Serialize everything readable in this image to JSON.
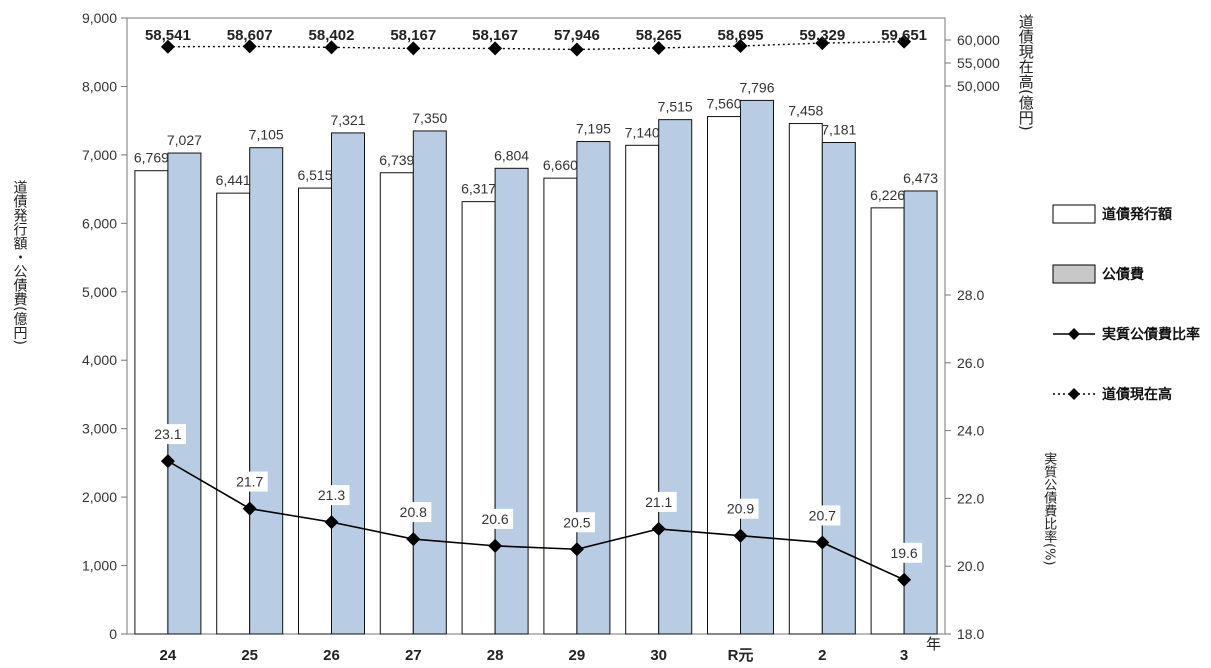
{
  "chart_data": {
    "type": "bar",
    "categories": [
      "24",
      "25",
      "26",
      "27",
      "28",
      "29",
      "30",
      "R元",
      "2",
      "3"
    ],
    "x_unit": "年",
    "series": [
      {
        "name": "道債発行額",
        "type": "bar",
        "axis": "left",
        "color": "#ffffff",
        "values": [
          6769,
          6441,
          6515,
          6739,
          6317,
          6660,
          7140,
          7560,
          7458,
          6226
        ]
      },
      {
        "name": "公債費",
        "type": "bar",
        "axis": "left",
        "color": "#b8cce4",
        "values": [
          7027,
          7105,
          7321,
          7350,
          6804,
          7195,
          7515,
          7796,
          7181,
          6473
        ]
      },
      {
        "name": "実質公債費比率",
        "type": "line",
        "axis": "right_bottom",
        "style": "solid",
        "values": [
          23.1,
          21.7,
          21.3,
          20.8,
          20.6,
          20.5,
          21.1,
          20.9,
          20.7,
          19.6
        ]
      },
      {
        "name": "道債現在高",
        "type": "line",
        "axis": "right_top",
        "style": "dotted",
        "values": [
          58541,
          58607,
          58402,
          58167,
          58167,
          57946,
          58265,
          58695,
          59329,
          59651
        ]
      }
    ],
    "left_axis": {
      "label": "道債発行額・公債費(億円)",
      "ylim": [
        0,
        9000
      ],
      "ticks": [
        "0",
        "1,000",
        "2,000",
        "3,000",
        "4,000",
        "5,000",
        "6,000",
        "7,000",
        "8,000",
        "9,000"
      ]
    },
    "right_top_axis": {
      "label": "道債現在高(億円)",
      "ylim": [
        50000,
        60000
      ],
      "ticks": [
        "50,000",
        "55,000",
        "60,000"
      ]
    },
    "right_bottom_axis": {
      "label": "実質公債費比率(%)",
      "ylim": [
        18.0,
        28.0
      ],
      "ticks": [
        "18.0",
        "20.0",
        "22.0",
        "24.0",
        "26.0",
        "28.0"
      ]
    },
    "bar1_labels": [
      "6,769",
      "6,441",
      "6,515",
      "6,739",
      "6,317",
      "6,660",
      "7,140",
      "7,560",
      "7,458",
      "6,226"
    ],
    "bar2_labels": [
      "7,027",
      "7,105",
      "7,321",
      "7,350",
      "6,804",
      "7,195",
      "7,515",
      "7,796",
      "7,181",
      "6,473"
    ],
    "ratio_labels": [
      "23.1",
      "21.7",
      "21.3",
      "20.8",
      "20.6",
      "20.5",
      "21.1",
      "20.9",
      "20.7",
      "19.6"
    ],
    "stock_labels": [
      "58,541",
      "58,607",
      "58,402",
      "58,167",
      "58,167",
      "57,946",
      "58,265",
      "58,695",
      "59,329",
      "59,651"
    ],
    "legend_position": "right"
  },
  "axis_titles": {
    "left": "道債発行額・公債費(億円)",
    "right_top": "道債現在高(億円)",
    "right_bottom": "実質公債費比率(%)"
  },
  "legend": {
    "item1": "道債発行額",
    "item2": "公債費",
    "item3": "実質公債費比率",
    "item4": "道債現在高"
  },
  "year_unit": "年"
}
